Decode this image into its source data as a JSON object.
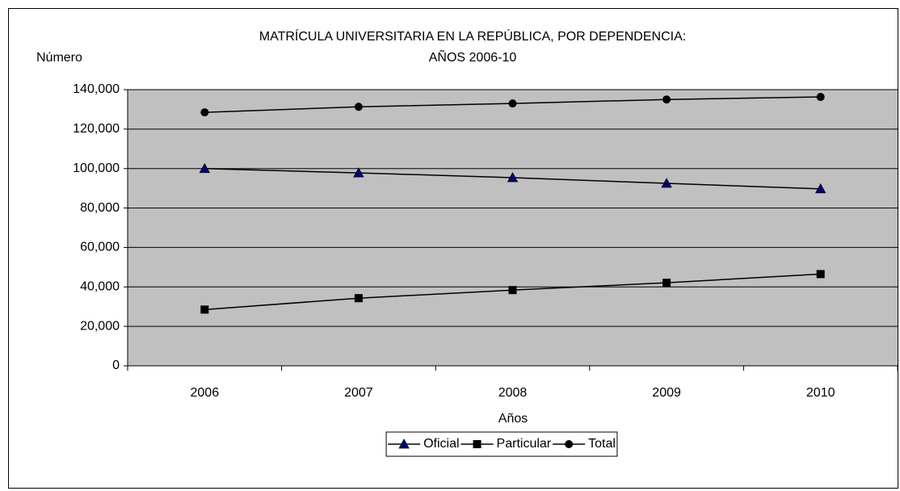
{
  "chart_data": {
    "type": "line",
    "title": [
      "MATRÍCULA UNIVERSITARIA EN LA REPÚBLICA, POR DEPENDENCIA:",
      "AÑOS 2006-10"
    ],
    "y_label": "Número",
    "x_label": "Años",
    "categories": [
      "2006",
      "2007",
      "2008",
      "2009",
      "2010"
    ],
    "series": [
      {
        "name": "Oficial",
        "color": "#000000",
        "marker": "triangle",
        "marker_color": "#000080",
        "values": [
          100000,
          97800,
          95400,
          92500,
          89700
        ]
      },
      {
        "name": "Particular",
        "color": "#000000",
        "marker": "square",
        "marker_color": "#000000",
        "values": [
          28500,
          34300,
          38400,
          42100,
          46500
        ]
      },
      {
        "name": "Total",
        "color": "#000000",
        "marker": "circle",
        "marker_color": "#000000",
        "values": [
          128500,
          131300,
          133000,
          135000,
          136300
        ]
      }
    ],
    "ylim": [
      0,
      140000
    ],
    "yticks": [
      0,
      {
        "value": 20000,
        "label": "20,000"
      },
      {
        "value": 40000,
        "label": "40,000"
      },
      {
        "value": 60000,
        "label": "60,000"
      },
      {
        "value": 80000,
        "label": "80,000"
      },
      {
        "value": 100000,
        "label": "100,000"
      },
      {
        "value": 120000,
        "label": "120,000"
      },
      {
        "value": 140000,
        "label": "140,000"
      }
    ],
    "grid": true,
    "plot_background": "#c0c0c0",
    "legend": "bottom"
  }
}
